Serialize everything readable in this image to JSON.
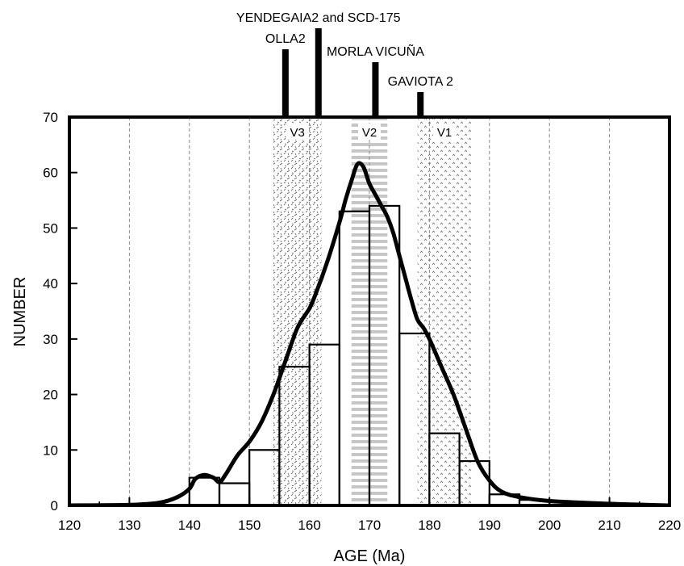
{
  "chart_data": {
    "type": "bar",
    "xlabel": "AGE (Ma)",
    "ylabel": "NUMBER",
    "xlim": [
      120,
      220
    ],
    "ylim": [
      0,
      70
    ],
    "x_ticks": [
      120,
      130,
      140,
      150,
      160,
      170,
      180,
      190,
      200,
      210,
      220
    ],
    "x_tick_labels": [
      "120",
      "130",
      "140",
      "150",
      "160",
      "170",
      "180",
      "190",
      "200",
      "210",
      "220"
    ],
    "y_ticks": [
      0,
      10,
      20,
      30,
      40,
      50,
      60,
      70
    ],
    "y_tick_labels": [
      "0",
      "10",
      "20",
      "30",
      "40",
      "50",
      "60",
      "70"
    ],
    "grid": "vertical dashed",
    "histogram": {
      "bin_width": 5,
      "bins": [
        {
          "x0": 140,
          "x1": 145,
          "count": 5
        },
        {
          "x0": 145,
          "x1": 150,
          "count": 4
        },
        {
          "x0": 150,
          "x1": 155,
          "count": 10
        },
        {
          "x0": 155,
          "x1": 160,
          "count": 25
        },
        {
          "x0": 160,
          "x1": 165,
          "count": 29
        },
        {
          "x0": 165,
          "x1": 170,
          "count": 53
        },
        {
          "x0": 170,
          "x1": 175,
          "count": 54
        },
        {
          "x0": 175,
          "x1": 180,
          "count": 31
        },
        {
          "x0": 180,
          "x1": 185,
          "count": 13
        },
        {
          "x0": 185,
          "x1": 190,
          "count": 8
        },
        {
          "x0": 190,
          "x1": 195,
          "count": 2
        },
        {
          "x0": 195,
          "x1": 200,
          "count": 1
        }
      ]
    },
    "density_curve": {
      "x": [
        120,
        130,
        135,
        138,
        140,
        141,
        142.5,
        144,
        145,
        146,
        148,
        150,
        152,
        154,
        156,
        158,
        160,
        161,
        163,
        165,
        166,
        167,
        168,
        169,
        170,
        171,
        172,
        173,
        174,
        175,
        176,
        177,
        178,
        179,
        180,
        182,
        184,
        186,
        188,
        190,
        192,
        195,
        200,
        210,
        220
      ],
      "y": [
        0,
        0.1,
        0.5,
        1.5,
        3,
        4.8,
        5.5,
        5,
        4.2,
        5.5,
        9,
        11.5,
        15,
        20,
        26,
        32,
        35.5,
        38,
        44,
        51,
        55,
        58.5,
        61.5,
        61,
        58,
        56,
        54,
        52,
        49,
        45,
        41,
        37,
        33.5,
        32,
        30,
        25,
        20,
        14,
        8,
        4.5,
        2.5,
        1.5,
        0.8,
        0.3,
        0
      ]
    },
    "bands": [
      {
        "label": "V3",
        "x0": 154,
        "x1": 162
      },
      {
        "label": "V2",
        "x0": 167,
        "x1": 173
      },
      {
        "label": "V1",
        "x0": 178,
        "x1": 187
      }
    ],
    "markers": [
      {
        "label": "OLLA2",
        "x": 156,
        "height": "medium"
      },
      {
        "label": "YENDEGAIA2 and SCD-175",
        "x": 161.5,
        "height": "tall"
      },
      {
        "label": "MORLA VICUÑA",
        "x": 171,
        "height": "medium-short"
      },
      {
        "label": "GAVIOTA 2",
        "x": 178.5,
        "height": "short"
      }
    ]
  }
}
